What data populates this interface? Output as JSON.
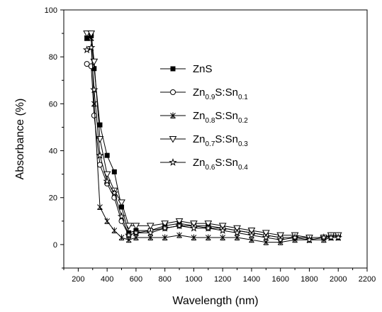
{
  "chart_data": {
    "type": "line",
    "xlabel": "Wavelength (nm)",
    "ylabel": "Absorbance (%)",
    "xlim": [
      100,
      2200
    ],
    "ylim": [
      -10,
      100
    ],
    "xticks": [
      200,
      400,
      600,
      800,
      1000,
      1200,
      1400,
      1600,
      1800,
      2000,
      2200
    ],
    "yticks": [
      0,
      20,
      40,
      60,
      80,
      100
    ],
    "grid": false,
    "legend_position": "center",
    "series": [
      {
        "name": "ZnS",
        "legend": {
          "base": "ZnS",
          "parts": []
        },
        "marker": "square-filled",
        "x": [
          260,
          290,
          310,
          350,
          400,
          450,
          500,
          550,
          600,
          700,
          800,
          900,
          1000,
          1100,
          1200,
          1300,
          1400,
          1500,
          1600,
          1700,
          1800,
          1900,
          1950,
          2000
        ],
        "y": [
          88,
          89,
          75,
          51,
          38,
          31,
          16,
          5,
          6,
          6,
          8,
          9,
          8,
          8,
          7,
          6,
          5,
          4,
          3,
          3,
          3,
          3,
          4,
          4
        ]
      },
      {
        "name": "Zn0.9S:Sn0.1",
        "legend": {
          "base": "Zn",
          "parts": [
            [
              "0.9",
              "S:Sn"
            ],
            [
              "0.1",
              ""
            ]
          ]
        },
        "marker": "circle-open",
        "x": [
          260,
          290,
          310,
          350,
          400,
          450,
          500,
          550,
          600,
          700,
          800,
          900,
          1000,
          1100,
          1200,
          1300,
          1400,
          1500,
          1600,
          1700,
          1800,
          1900,
          1950,
          2000
        ],
        "y": [
          77,
          76,
          55,
          34,
          26,
          20,
          10,
          4,
          5,
          6,
          7,
          8,
          8,
          7,
          7,
          6,
          5,
          4,
          3,
          3,
          3,
          3,
          4,
          4
        ]
      },
      {
        "name": "Zn0.8S:Sn0.2",
        "legend": {
          "base": "Zn",
          "parts": [
            [
              "0.8",
              "S:Sn"
            ],
            [
              "0.2",
              ""
            ]
          ]
        },
        "marker": "cross-triangle",
        "x": [
          260,
          290,
          310,
          350,
          400,
          450,
          500,
          550,
          600,
          700,
          800,
          900,
          1000,
          1100,
          1200,
          1300,
          1400,
          1500,
          1600,
          1700,
          1800,
          1900,
          1950,
          2000
        ],
        "y": [
          88,
          88,
          60,
          16,
          10,
          6,
          3,
          2,
          3,
          3,
          3,
          4,
          3,
          3,
          3,
          3,
          2,
          1,
          1,
          2,
          2,
          2,
          3,
          3
        ]
      },
      {
        "name": "Zn0.7S:Sn0.3",
        "legend": {
          "base": "Zn",
          "parts": [
            [
              "0.7",
              "S:Sn"
            ],
            [
              "0.3",
              ""
            ]
          ]
        },
        "marker": "triangle-down-open",
        "x": [
          260,
          290,
          310,
          350,
          400,
          450,
          500,
          550,
          600,
          700,
          800,
          900,
          1000,
          1100,
          1200,
          1300,
          1400,
          1500,
          1600,
          1700,
          1800,
          1900,
          1950,
          2000
        ],
        "y": [
          90,
          90,
          78,
          45,
          30,
          23,
          18,
          8,
          8,
          8,
          9,
          10,
          9,
          9,
          8,
          7,
          6,
          5,
          4,
          4,
          3,
          3,
          4,
          4
        ]
      },
      {
        "name": "Zn0.6S:Sn0.4",
        "legend": {
          "base": "Zn",
          "parts": [
            [
              "0.6",
              "S:Sn"
            ],
            [
              "0.4",
              ""
            ]
          ]
        },
        "marker": "star",
        "x": [
          260,
          290,
          310,
          350,
          400,
          450,
          500,
          550,
          600,
          700,
          800,
          900,
          1000,
          1100,
          1200,
          1300,
          1400,
          1500,
          1600,
          1700,
          1800,
          1900,
          1950,
          2000
        ],
        "y": [
          83,
          84,
          66,
          38,
          27,
          22,
          12,
          4,
          5,
          5,
          7,
          8,
          7,
          7,
          6,
          5,
          4,
          3,
          2,
          3,
          2,
          3,
          3,
          3
        ]
      }
    ]
  }
}
